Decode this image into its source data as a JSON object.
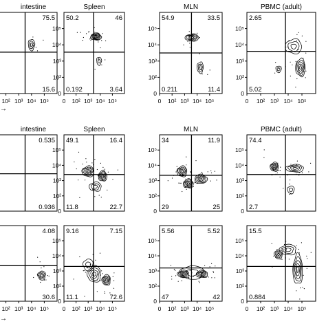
{
  "chart_data": {
    "type": "contour",
    "axis_ticks": [
      "0",
      "10²",
      "10³",
      "10⁴",
      "10⁵"
    ],
    "arrow_glyph": "→",
    "rows": [
      {
        "panels": [
          {
            "title": "intestine",
            "quadrants": {
              "ul": "",
              "ur": "75.5",
              "ll": "",
              "lr": "15.6"
            },
            "populations": [
              {
                "x": 3.0,
                "y": 3.0,
                "sx": 0.25,
                "sy": 0.35,
                "level": 3
              }
            ]
          },
          {
            "title": "Spleen",
            "quadrants": {
              "ul": "50.2",
              "ur": "46",
              "ll": "0.192",
              "lr": "3.64"
            },
            "populations": [
              {
                "x": 2.65,
                "y": 3.5,
                "sx": 0.45,
                "sy": 0.22,
                "level": 6
              },
              {
                "x": 2.9,
                "y": 2.0,
                "sx": 0.2,
                "sy": 0.25,
                "level": 2
              }
            ]
          },
          {
            "title": "MLN",
            "quadrants": {
              "ul": "54.9",
              "ur": "33.5",
              "ll": "0.211",
              "lr": "11.4"
            },
            "populations": [
              {
                "x": 2.6,
                "y": 3.45,
                "sx": 0.55,
                "sy": 0.22,
                "level": 5
              },
              {
                "x": 3.25,
                "y": 1.6,
                "sx": 0.25,
                "sy": 0.35,
                "level": 3
              }
            ]
          },
          {
            "title": "PBMC (adult)",
            "quadrants": {
              "ul": "2.65",
              "ur": "",
              "ll": "5.02",
              "lr": ""
            },
            "populations": [
              {
                "x": 3.9,
                "y": 1.6,
                "sx": 0.35,
                "sy": 0.55,
                "level": 5
              },
              {
                "x": 2.3,
                "y": 1.5,
                "sx": 0.2,
                "sy": 0.2,
                "level": 2
              },
              {
                "x": 3.4,
                "y": 2.9,
                "sx": 0.6,
                "sy": 0.45,
                "level": 3
              }
            ]
          }
        ]
      },
      {
        "panels": [
          {
            "title": "intestine",
            "quadrants": {
              "ul": "",
              "ur": "0.535",
              "ll": "",
              "lr": "0.936"
            },
            "populations": []
          },
          {
            "title": "Spleen",
            "quadrants": {
              "ul": "49.1",
              "ur": "16.4",
              "ll": "11.8",
              "lr": "22.7"
            },
            "populations": [
              {
                "x": 2.0,
                "y": 2.6,
                "sx": 0.5,
                "sy": 0.35,
                "level": 5
              },
              {
                "x": 3.2,
                "y": 2.3,
                "sx": 0.35,
                "sy": 0.35,
                "level": 5
              },
              {
                "x": 2.6,
                "y": 1.6,
                "sx": 0.5,
                "sy": 0.3,
                "level": 3
              }
            ]
          },
          {
            "title": "MLN",
            "quadrants": {
              "ul": "34",
              "ur": "11.9",
              "ll": "29",
              "lr": "25"
            },
            "populations": [
              {
                "x": 1.8,
                "y": 2.6,
                "sx": 0.4,
                "sy": 0.35,
                "level": 5
              },
              {
                "x": 2.3,
                "y": 1.8,
                "sx": 0.4,
                "sy": 0.3,
                "level": 5
              },
              {
                "x": 3.3,
                "y": 2.1,
                "sx": 0.5,
                "sy": 0.3,
                "level": 5
              }
            ]
          },
          {
            "title": "PBMC (adult)",
            "quadrants": {
              "ul": "74.4",
              "ur": "",
              "ll": "2.7",
              "lr": ""
            },
            "populations": [
              {
                "x": 2.0,
                "y": 2.9,
                "sx": 0.3,
                "sy": 0.3,
                "level": 5
              },
              {
                "x": 3.5,
                "y": 2.8,
                "sx": 0.65,
                "sy": 0.25,
                "level": 4
              },
              {
                "x": 3.2,
                "y": 1.4,
                "sx": 0.25,
                "sy": 0.25,
                "level": 2
              }
            ]
          }
        ]
      },
      {
        "panels": [
          {
            "title": "",
            "quadrants": {
              "ul": "",
              "ur": "4.08",
              "ll": "",
              "lr": "30.6"
            },
            "populations": [
              {
                "x": 3.8,
                "y": 1.7,
                "sx": 0.3,
                "sy": 0.3,
                "level": 4
              }
            ]
          },
          {
            "title": "",
            "quadrants": {
              "ul": "9.16",
              "ur": "7.15",
              "ll": "11.1",
              "lr": "72.6"
            },
            "populations": [
              {
                "x": 3.5,
                "y": 1.4,
                "sx": 0.35,
                "sy": 0.35,
                "level": 5
              },
              {
                "x": 2.5,
                "y": 1.8,
                "sx": 0.55,
                "sy": 0.55,
                "level": 4
              },
              {
                "x": 2.0,
                "y": 2.4,
                "sx": 0.4,
                "sy": 0.4,
                "level": 2
              }
            ]
          },
          {
            "title": "",
            "quadrants": {
              "ul": "5.56",
              "ur": "5.52",
              "ll": "47",
              "lr": "42"
            },
            "populations": [
              {
                "x": 1.9,
                "y": 1.8,
                "sx": 0.45,
                "sy": 0.25,
                "level": 5
              },
              {
                "x": 3.4,
                "y": 1.8,
                "sx": 0.45,
                "sy": 0.25,
                "level": 5
              },
              {
                "x": 2.6,
                "y": 1.9,
                "sx": 0.9,
                "sy": 0.45,
                "level": 2
              }
            ]
          },
          {
            "title": "",
            "quadrants": {
              "ul": "15.5",
              "ur": "",
              "ll": "0.884",
              "lr": ""
            },
            "populations": [
              {
                "x": 2.3,
                "y": 3.1,
                "sx": 0.3,
                "sy": 0.3,
                "level": 4
              },
              {
                "x": 3.7,
                "y": 2.1,
                "sx": 0.35,
                "sy": 1.0,
                "level": 5
              },
              {
                "x": 3.0,
                "y": 3.4,
                "sx": 0.6,
                "sy": 0.35,
                "level": 3
              }
            ]
          }
        ]
      }
    ]
  }
}
